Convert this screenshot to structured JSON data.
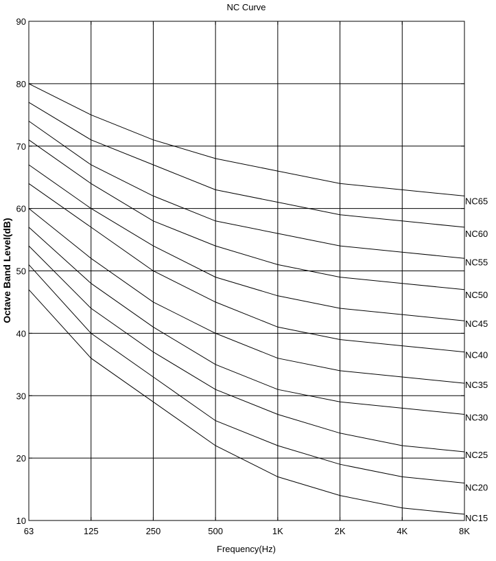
{
  "chart_data": {
    "type": "line",
    "title": "NC Curve",
    "xlabel": "Frequency(Hz)",
    "ylabel": "Octave Band Level(dB)",
    "categories": [
      "63",
      "125",
      "250",
      "500",
      "1K",
      "2K",
      "4K",
      "8K"
    ],
    "yticks": [
      "10",
      "20",
      "30",
      "40",
      "50",
      "60",
      "70",
      "80",
      "90"
    ],
    "ylim": [
      10,
      90
    ],
    "grid": true,
    "series": [
      {
        "name": "NC65",
        "values": [
          80,
          75,
          71,
          68,
          66,
          64,
          63,
          62
        ]
      },
      {
        "name": "NC60",
        "values": [
          77,
          71,
          67,
          63,
          61,
          59,
          58,
          57
        ]
      },
      {
        "name": "NC55",
        "values": [
          74,
          67,
          62,
          58,
          56,
          54,
          53,
          52
        ]
      },
      {
        "name": "NC50",
        "values": [
          71,
          64,
          58,
          54,
          51,
          49,
          48,
          47
        ]
      },
      {
        "name": "NC45",
        "values": [
          67,
          60,
          54,
          49,
          46,
          44,
          43,
          42
        ]
      },
      {
        "name": "NC40",
        "values": [
          64,
          57,
          50,
          45,
          41,
          39,
          38,
          37
        ]
      },
      {
        "name": "NC35",
        "values": [
          60,
          52,
          45,
          40,
          36,
          34,
          33,
          32
        ]
      },
      {
        "name": "NC30",
        "values": [
          57,
          48,
          41,
          35,
          31,
          29,
          28,
          27
        ]
      },
      {
        "name": "NC25",
        "values": [
          54,
          44,
          37,
          31,
          27,
          24,
          22,
          21
        ]
      },
      {
        "name": "NC20",
        "values": [
          51,
          40,
          33,
          26,
          22,
          19,
          17,
          16
        ]
      },
      {
        "name": "NC15",
        "values": [
          47,
          36,
          29,
          22,
          17,
          14,
          12,
          11
        ]
      }
    ],
    "colors": {
      "line": "#000000",
      "grid": "#000000",
      "background": "#ffffff"
    }
  }
}
